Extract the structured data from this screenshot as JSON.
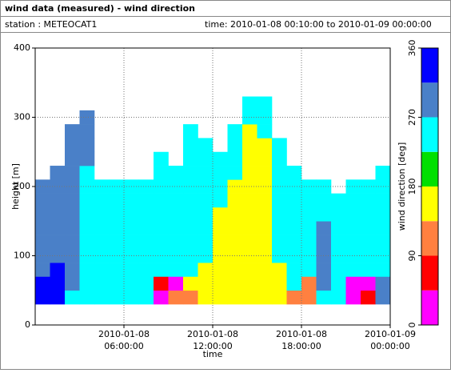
{
  "chart_data": {
    "type": "heatmap",
    "title": "wind data (measured) - wind direction",
    "station": "station : METEOCAT1",
    "time_range": "time: 2010-01-08 00:10:00 to 2010-01-09 00:00:00",
    "xlabel": "time",
    "ylabel": "height [m]",
    "colorbar_label": "wind direction [deg]",
    "xlim": [
      0,
      24
    ],
    "xticks": [
      {
        "value": 6,
        "label": "2010-01-08\n06:00:00"
      },
      {
        "value": 12,
        "label": "2010-01-08\n12:00:00"
      },
      {
        "value": 18,
        "label": "2010-01-08\n18:00:00"
      },
      {
        "value": 24,
        "label": "2010-01-09\n00:00:00"
      }
    ],
    "ylim": [
      0,
      400
    ],
    "yticks": [
      0,
      100,
      200,
      300,
      400
    ],
    "grid": true,
    "x": [
      0.5,
      1.5,
      2.5,
      3.5,
      4.5,
      5.5,
      6.5,
      7.5,
      8.5,
      9.5,
      10.5,
      11.5,
      12.5,
      13.5,
      14.5,
      15.5,
      16.5,
      17.5,
      18.5,
      19.5,
      20.5,
      21.5,
      22.5,
      23.5
    ],
    "heights": [
      40,
      60,
      80,
      100,
      120,
      140,
      160,
      180,
      200,
      220,
      240,
      260,
      280,
      300,
      320
    ],
    "z": [
      [
        330,
        330,
        290,
        290,
        290,
        290,
        290,
        290,
        290,
        null,
        null,
        null,
        null,
        null,
        null
      ],
      [
        330,
        330,
        330,
        290,
        290,
        290,
        290,
        290,
        290,
        290,
        null,
        null,
        null,
        null,
        null
      ],
      [
        225,
        290,
        290,
        290,
        290,
        290,
        290,
        290,
        290,
        290,
        290,
        290,
        290,
        null,
        null
      ],
      [
        225,
        225,
        225,
        225,
        225,
        225,
        225,
        225,
        225,
        225,
        290,
        290,
        290,
        290,
        null
      ],
      [
        225,
        225,
        225,
        225,
        225,
        225,
        225,
        225,
        225,
        null,
        null,
        null,
        null,
        null,
        null
      ],
      [
        225,
        225,
        225,
        225,
        225,
        225,
        225,
        225,
        225,
        null,
        null,
        null,
        null,
        null,
        null
      ],
      [
        225,
        225,
        225,
        225,
        225,
        225,
        225,
        225,
        225,
        null,
        null,
        null,
        null,
        null,
        null
      ],
      [
        225,
        225,
        225,
        225,
        225,
        225,
        225,
        225,
        225,
        null,
        null,
        null,
        null,
        null,
        null
      ],
      [
        20,
        60,
        225,
        225,
        225,
        225,
        225,
        225,
        225,
        225,
        225,
        null,
        null,
        null,
        null
      ],
      [
        120,
        20,
        225,
        225,
        225,
        225,
        225,
        225,
        225,
        225,
        null,
        null,
        null,
        null,
        null
      ],
      [
        120,
        160,
        225,
        225,
        225,
        225,
        225,
        225,
        225,
        225,
        225,
        225,
        225,
        null,
        null
      ],
      [
        160,
        160,
        160,
        225,
        225,
        225,
        225,
        225,
        225,
        225,
        225,
        225,
        null,
        null,
        null
      ],
      [
        160,
        160,
        160,
        160,
        160,
        160,
        160,
        225,
        225,
        225,
        225,
        null,
        null,
        null,
        null
      ],
      [
        160,
        160,
        160,
        160,
        160,
        160,
        160,
        160,
        160,
        225,
        225,
        225,
        225,
        null,
        null
      ],
      [
        160,
        160,
        160,
        160,
        160,
        160,
        160,
        160,
        160,
        160,
        160,
        160,
        160,
        225,
        225
      ],
      [
        160,
        160,
        160,
        160,
        160,
        160,
        160,
        160,
        160,
        160,
        160,
        160,
        225,
        225,
        225
      ],
      [
        160,
        160,
        160,
        225,
        225,
        225,
        225,
        225,
        225,
        225,
        225,
        225,
        null,
        null,
        null
      ],
      [
        100,
        225,
        225,
        225,
        225,
        225,
        225,
        225,
        225,
        225,
        null,
        null,
        null,
        null,
        null
      ],
      [
        100,
        100,
        225,
        225,
        225,
        225,
        225,
        225,
        225,
        null,
        null,
        null,
        null,
        null,
        null
      ],
      [
        225,
        290,
        290,
        290,
        290,
        290,
        225,
        225,
        225,
        null,
        null,
        null,
        null,
        null,
        null
      ],
      [
        225,
        225,
        225,
        225,
        225,
        225,
        225,
        225,
        null,
        null,
        null,
        null,
        null,
        null,
        null
      ],
      [
        20,
        20,
        225,
        225,
        225,
        225,
        225,
        225,
        225,
        null,
        null,
        null,
        null,
        null,
        null
      ],
      [
        60,
        20,
        225,
        225,
        225,
        225,
        225,
        225,
        225,
        null,
        null,
        null,
        null,
        null,
        null
      ],
      [
        290,
        290,
        225,
        225,
        225,
        225,
        225,
        225,
        225,
        225,
        null,
        null,
        null,
        null,
        null
      ]
    ],
    "colorscale": {
      "bins": [
        0,
        45,
        90,
        135,
        180,
        225,
        270,
        315,
        360
      ],
      "colors": [
        "#ff00ff",
        "#ff0000",
        "#ff8040",
        "#ffff00",
        "#00e000",
        "#00ffff",
        "#4a80c8",
        "#0000ff"
      ],
      "ticks": [
        0,
        90,
        180,
        270,
        360
      ]
    }
  }
}
